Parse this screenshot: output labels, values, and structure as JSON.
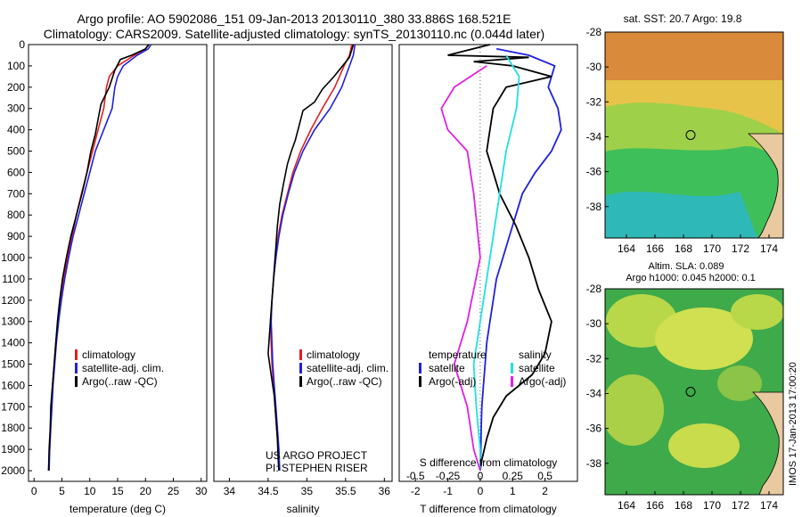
{
  "header": {
    "title_line1": "Argo profile: AO 5902086_151 09-Jan-2013 20130110_380 33.886S 168.521E",
    "title_line2": "Climatology: CARS2009. Satellite-adjusted climatology: synTS_20130110.nc (0.044d later)"
  },
  "watermark": "IMOS 17-Jan-2013 17:00:20",
  "credits": {
    "line1": "US ARGO PROJECT",
    "line2": "PI: STEPHEN RISER"
  },
  "colors": {
    "climatology": "#e02020",
    "satellite": "#2020e0",
    "argo": "#000000",
    "salinity_satellite": "#20e0e0",
    "salinity_argo": "#e020e0"
  },
  "chart_data": [
    {
      "type": "line",
      "id": "temperature",
      "xlabel": "temperature (deg C)",
      "ylabel": "",
      "xlim": [
        -1,
        31
      ],
      "ylim": [
        2050,
        0
      ],
      "xticks": [
        0,
        5,
        10,
        15,
        20,
        25,
        30
      ],
      "yticks": [
        0,
        100,
        200,
        300,
        400,
        500,
        600,
        700,
        800,
        900,
        1000,
        1100,
        1200,
        1300,
        1400,
        1500,
        1600,
        1700,
        1800,
        1900,
        2000
      ],
      "legend": [
        "climatology",
        "satellite-adj. clim.",
        "Argo(..raw -QC)"
      ],
      "series": [
        {
          "name": "climatology",
          "color": "#e02020",
          "points": [
            [
              20.5,
              0
            ],
            [
              20,
              20
            ],
            [
              18,
              50
            ],
            [
              15,
              100
            ],
            [
              13.5,
              150
            ],
            [
              13,
              200
            ],
            [
              12.5,
              300
            ],
            [
              11.5,
              400
            ],
            [
              10.5,
              500
            ],
            [
              9.5,
              600
            ],
            [
              8.5,
              700
            ],
            [
              7.6,
              800
            ],
            [
              6.8,
              900
            ],
            [
              6,
              1000
            ],
            [
              5.3,
              1100
            ],
            [
              4.7,
              1200
            ],
            [
              4.3,
              1300
            ],
            [
              3.9,
              1400
            ],
            [
              3.6,
              1500
            ],
            [
              3.3,
              1600
            ],
            [
              3.1,
              1700
            ],
            [
              2.9,
              1800
            ],
            [
              2.8,
              1900
            ],
            [
              2.6,
              2000
            ]
          ]
        },
        {
          "name": "satellite-adj. clim.",
          "color": "#2020e0",
          "points": [
            [
              21,
              0
            ],
            [
              20.5,
              20
            ],
            [
              18.5,
              50
            ],
            [
              16,
              100
            ],
            [
              15,
              150
            ],
            [
              14.5,
              200
            ],
            [
              14,
              300
            ],
            [
              12.5,
              400
            ],
            [
              11,
              500
            ],
            [
              10,
              600
            ],
            [
              9,
              700
            ],
            [
              8,
              800
            ],
            [
              7,
              900
            ],
            [
              6.2,
              1000
            ],
            [
              5.5,
              1100
            ],
            [
              4.9,
              1200
            ],
            [
              4.4,
              1300
            ],
            [
              4,
              1400
            ],
            [
              3.7,
              1500
            ],
            [
              3.4,
              1600
            ],
            [
              3.2,
              1700
            ],
            [
              3,
              1800
            ],
            [
              2.8,
              1900
            ],
            [
              2.7,
              2000
            ]
          ]
        },
        {
          "name": "Argo(..raw -QC)",
          "color": "#000000",
          "points": [
            [
              20.6,
              0
            ],
            [
              20,
              20
            ],
            [
              17.5,
              50
            ],
            [
              15.5,
              70
            ],
            [
              14.5,
              120
            ],
            [
              13.5,
              200
            ],
            [
              12,
              280
            ],
            [
              11.5,
              350
            ],
            [
              11,
              420
            ],
            [
              10.2,
              500
            ],
            [
              9.5,
              600
            ],
            [
              8.6,
              700
            ],
            [
              7.6,
              800
            ],
            [
              6.6,
              900
            ],
            [
              5.8,
              1000
            ],
            [
              5.1,
              1100
            ],
            [
              4.6,
              1200
            ],
            [
              4.2,
              1300
            ],
            [
              3.9,
              1400
            ],
            [
              3.6,
              1500
            ],
            [
              3.3,
              1600
            ],
            [
              3,
              1700
            ],
            [
              2.9,
              1800
            ],
            [
              2.7,
              1900
            ],
            [
              2.6,
              2000
            ]
          ]
        }
      ]
    },
    {
      "type": "line",
      "id": "salinity",
      "xlabel": "salinity",
      "ylabel": "",
      "xlim": [
        33.8,
        36.1
      ],
      "ylim": [
        2050,
        0
      ],
      "xticks": [
        34,
        34.5,
        35,
        35.5,
        36
      ],
      "legend": [
        "climatology",
        "satellite-adj. clim.",
        "Argo(..raw -QC)"
      ],
      "series": [
        {
          "name": "climatology",
          "color": "#e02020",
          "points": [
            [
              35.58,
              0
            ],
            [
              35.55,
              50
            ],
            [
              35.48,
              100
            ],
            [
              35.36,
              200
            ],
            [
              35.2,
              300
            ],
            [
              35.05,
              400
            ],
            [
              34.92,
              500
            ],
            [
              34.82,
              600
            ],
            [
              34.75,
              700
            ],
            [
              34.68,
              800
            ],
            [
              34.63,
              900
            ],
            [
              34.6,
              1000
            ],
            [
              34.57,
              1100
            ],
            [
              34.55,
              1200
            ],
            [
              34.53,
              1300
            ],
            [
              34.54,
              1400
            ],
            [
              34.55,
              1500
            ],
            [
              34.57,
              1600
            ],
            [
              34.59,
              1700
            ],
            [
              34.61,
              1800
            ],
            [
              34.63,
              1900
            ],
            [
              34.64,
              2000
            ]
          ]
        },
        {
          "name": "satellite-adj. clim.",
          "color": "#2020e0",
          "points": [
            [
              35.62,
              0
            ],
            [
              35.6,
              50
            ],
            [
              35.55,
              100
            ],
            [
              35.45,
              200
            ],
            [
              35.3,
              300
            ],
            [
              35.1,
              400
            ],
            [
              34.95,
              500
            ],
            [
              34.84,
              600
            ],
            [
              34.76,
              700
            ],
            [
              34.69,
              800
            ],
            [
              34.64,
              900
            ],
            [
              34.6,
              1000
            ],
            [
              34.57,
              1100
            ],
            [
              34.55,
              1200
            ],
            [
              34.54,
              1300
            ],
            [
              34.55,
              1400
            ],
            [
              34.56,
              1500
            ],
            [
              34.58,
              1600
            ],
            [
              34.6,
              1700
            ],
            [
              34.62,
              1800
            ],
            [
              34.64,
              1900
            ],
            [
              34.65,
              2000
            ]
          ]
        },
        {
          "name": "Argo(..raw -QC)",
          "color": "#000000",
          "points": [
            [
              35.6,
              0
            ],
            [
              35.55,
              60
            ],
            [
              35.35,
              150
            ],
            [
              35.2,
              210
            ],
            [
              35.1,
              270
            ],
            [
              34.95,
              310
            ],
            [
              34.9,
              380
            ],
            [
              34.85,
              450
            ],
            [
              34.8,
              500
            ],
            [
              34.75,
              560
            ],
            [
              34.7,
              650
            ],
            [
              34.65,
              750
            ],
            [
              34.62,
              850
            ],
            [
              34.6,
              950
            ],
            [
              34.58,
              1050
            ],
            [
              34.56,
              1150
            ],
            [
              34.54,
              1250
            ],
            [
              34.52,
              1350
            ],
            [
              34.5,
              1450
            ],
            [
              34.54,
              1550
            ],
            [
              34.58,
              1650
            ],
            [
              34.6,
              1750
            ],
            [
              34.62,
              1850
            ],
            [
              34.63,
              1950
            ],
            [
              34.64,
              2000
            ]
          ]
        }
      ]
    },
    {
      "type": "line",
      "id": "differences",
      "xlabel": "T difference from climatology",
      "xlabel_top": "S difference from climatology",
      "xlim": [
        -2.5,
        3
      ],
      "xticks": [
        -2,
        -1,
        0,
        1,
        2
      ],
      "xticks_top": [
        -0.5,
        -0.25,
        0,
        0.25,
        0.5
      ],
      "legend_left_title": "temperature",
      "legend_right_title": "salinity",
      "legend": [
        "satellite",
        "Argo(-adj)",
        "satellite",
        "Argo(-adj)"
      ],
      "series": [
        {
          "name": "T satellite",
          "color": "#2020e0",
          "points": [
            [
              0.5,
              20
            ],
            [
              1.5,
              50
            ],
            [
              2.3,
              100
            ],
            [
              2.1,
              200
            ],
            [
              2.4,
              300
            ],
            [
              2.5,
              400
            ],
            [
              2.2,
              500
            ],
            [
              1.7,
              600
            ],
            [
              1.3,
              700
            ],
            [
              1.1,
              800
            ],
            [
              0.9,
              900
            ],
            [
              0.7,
              1000
            ],
            [
              0.5,
              1100
            ],
            [
              0.4,
              1200
            ],
            [
              0.3,
              1300
            ],
            [
              0.2,
              1400
            ],
            [
              0.15,
              1500
            ],
            [
              0.1,
              1600
            ],
            [
              0.05,
              1700
            ],
            [
              0.03,
              1800
            ],
            [
              0.02,
              1900
            ],
            [
              0,
              2000
            ]
          ]
        },
        {
          "name": "T Argo(-adj)",
          "color": "#000000",
          "points": [
            [
              0.3,
              0
            ],
            [
              -1,
              50
            ],
            [
              1.5,
              60
            ],
            [
              -0.2,
              80
            ],
            [
              1,
              100
            ],
            [
              2.2,
              150
            ],
            [
              0.8,
              200
            ],
            [
              0.4,
              300
            ],
            [
              0.3,
              400
            ],
            [
              0.2,
              500
            ],
            [
              0.4,
              600
            ],
            [
              0.6,
              700
            ],
            [
              1.1,
              850
            ],
            [
              1.5,
              1000
            ],
            [
              1.8,
              1150
            ],
            [
              2.2,
              1300
            ],
            [
              2.0,
              1450
            ],
            [
              1.6,
              1550
            ],
            [
              0.8,
              1650
            ],
            [
              0.4,
              1750
            ],
            [
              0.2,
              1850
            ],
            [
              0.05,
              1950
            ],
            [
              0,
              2000
            ]
          ]
        },
        {
          "name": "S satellite",
          "color": "#20e0e0",
          "points": [
            [
              0.2,
              50
            ],
            [
              0.25,
              100
            ],
            [
              0.3,
              150
            ],
            [
              0.28,
              300
            ],
            [
              0.2,
              500
            ],
            [
              0.15,
              700
            ],
            [
              0.1,
              900
            ],
            [
              0.05,
              1100
            ],
            [
              0,
              1300
            ],
            [
              -0.05,
              1500
            ],
            [
              -0.03,
              1700
            ],
            [
              0,
              1900
            ],
            [
              0,
              2000
            ]
          ]
        },
        {
          "name": "S Argo(-adj)",
          "color": "#e020e0",
          "points": [
            [
              0.05,
              100
            ],
            [
              -0.2,
              200
            ],
            [
              -0.3,
              300
            ],
            [
              -0.25,
              400
            ],
            [
              -0.1,
              500
            ],
            [
              -0.05,
              700
            ],
            [
              0,
              1000
            ],
            [
              -0.1,
              1300
            ],
            [
              -0.2,
              1500
            ],
            [
              -0.1,
              1700
            ],
            [
              -0.05,
              1900
            ],
            [
              0,
              2000
            ]
          ]
        }
      ]
    },
    {
      "type": "heatmap",
      "id": "sst-map",
      "title": "sat. SST: 20.7 Argo: 19.8",
      "xlim": [
        162.5,
        175
      ],
      "ylim": [
        -39.8,
        -28
      ],
      "xticks": [
        164,
        166,
        168,
        170,
        172,
        174
      ],
      "yticks": [
        -28,
        -30,
        -32,
        -34,
        -36,
        -38
      ],
      "marker": [
        168.5,
        -33.9
      ]
    },
    {
      "type": "heatmap",
      "id": "sla-map",
      "title": "Altim. SLA: 0.089",
      "subtitle": "Argo h1000: 0.045 h2000: 0.1",
      "xlim": [
        162.5,
        175
      ],
      "ylim": [
        -39.8,
        -28
      ],
      "xticks": [
        164,
        166,
        168,
        170,
        172,
        174
      ],
      "yticks": [
        -28,
        -30,
        -32,
        -34,
        -36,
        -38
      ],
      "marker": [
        168.5,
        -33.9
      ]
    }
  ]
}
